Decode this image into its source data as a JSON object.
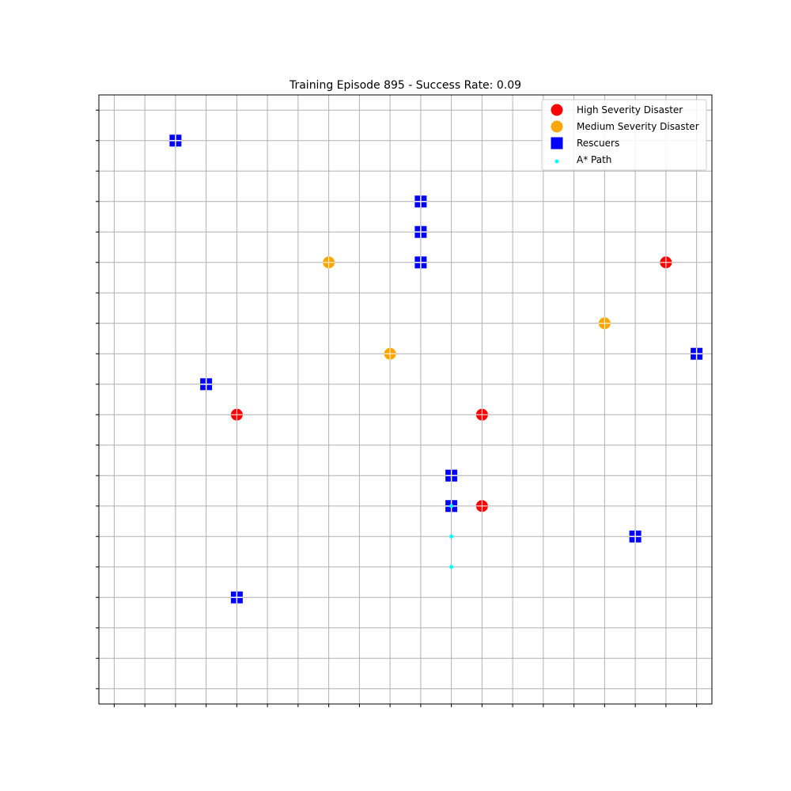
{
  "chart_data": {
    "type": "scatter",
    "title": "Training Episode 895 - Success Rate: 0.09",
    "xlabel": "",
    "ylabel": "",
    "xlim": [
      -0.5,
      19.5
    ],
    "ylim": [
      19.5,
      -0.5
    ],
    "x_ticks": [
      0,
      1,
      2,
      3,
      4,
      5,
      6,
      7,
      8,
      9,
      10,
      11,
      12,
      13,
      14,
      15,
      16,
      17,
      18,
      19
    ],
    "y_ticks": [
      0,
      1,
      2,
      3,
      4,
      5,
      6,
      7,
      8,
      9,
      10,
      11,
      12,
      13,
      14,
      15,
      16,
      17,
      18,
      19
    ],
    "tick_labels_visible": false,
    "grid": true,
    "legend_position": "upper right",
    "series": [
      {
        "name": "High Severity Disaster",
        "marker": "circle",
        "color": "#ff0000",
        "points": [
          [
            18,
            5
          ],
          [
            4,
            10
          ],
          [
            12,
            10
          ],
          [
            12,
            13
          ]
        ]
      },
      {
        "name": "Medium Severity Disaster",
        "marker": "circle",
        "color": "#ffa500",
        "points": [
          [
            7,
            5
          ],
          [
            16,
            7
          ],
          [
            9,
            8
          ]
        ]
      },
      {
        "name": "Rescuers",
        "marker": "square",
        "color": "#0000ff",
        "points": [
          [
            2,
            1
          ],
          [
            10,
            3
          ],
          [
            10,
            4
          ],
          [
            10,
            5
          ],
          [
            19,
            8
          ],
          [
            3,
            9
          ],
          [
            11,
            12
          ],
          [
            11,
            13
          ],
          [
            17,
            14
          ],
          [
            4,
            16
          ]
        ]
      },
      {
        "name": "A* Path",
        "marker": "small-dot",
        "color": "#00ffff",
        "points": [
          [
            11,
            13
          ],
          [
            11,
            14
          ],
          [
            11,
            15
          ]
        ]
      }
    ]
  }
}
